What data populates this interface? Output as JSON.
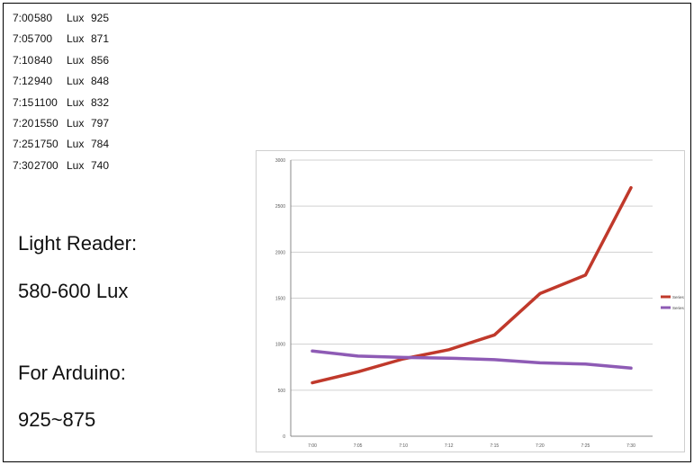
{
  "readings": [
    {
      "time": "7:00",
      "value": "580",
      "unit": "Lux",
      "arduino": "925"
    },
    {
      "time": "7:05",
      "value": "700",
      "unit": "Lux",
      "arduino": "871"
    },
    {
      "time": "7:10",
      "value": "840",
      "unit": "Lux",
      "arduino": "856"
    },
    {
      "time": "7:12",
      "value": "940",
      "unit": "Lux",
      "arduino": "848"
    },
    {
      "time": "7:15",
      "value": "1100",
      "unit": "Lux",
      "arduino": "832"
    },
    {
      "time": "7:20",
      "value": "1550",
      "unit": "Lux",
      "arduino": "797"
    },
    {
      "time": "7:25",
      "value": "1750",
      "unit": "Lux",
      "arduino": "784"
    },
    {
      "time": "7:30",
      "value": "2700",
      "unit": "Lux",
      "arduino": "740"
    }
  ],
  "notes": {
    "light_reader_label": "Light Reader:",
    "light_reader_value": "580-600 Lux",
    "arduino_label": "For Arduino:",
    "arduino_value": "925~875"
  },
  "chart_data": {
    "type": "line",
    "categories": [
      "7:00",
      "7:05",
      "7:10",
      "7:12",
      "7:15",
      "7:20",
      "7:25",
      "7:30"
    ],
    "series": [
      {
        "name": "Series2",
        "values": [
          580,
          700,
          840,
          940,
          1100,
          1550,
          1750,
          2700
        ],
        "color": "#c0392b"
      },
      {
        "name": "Series4",
        "values": [
          925,
          871,
          856,
          848,
          832,
          797,
          784,
          740
        ],
        "color": "#8e5bb5"
      }
    ],
    "yticks": [
      0,
      500,
      1000,
      1500,
      2000,
      2500,
      3000
    ],
    "ylim": [
      0,
      3000
    ],
    "grid": true,
    "legend_position": "right"
  }
}
